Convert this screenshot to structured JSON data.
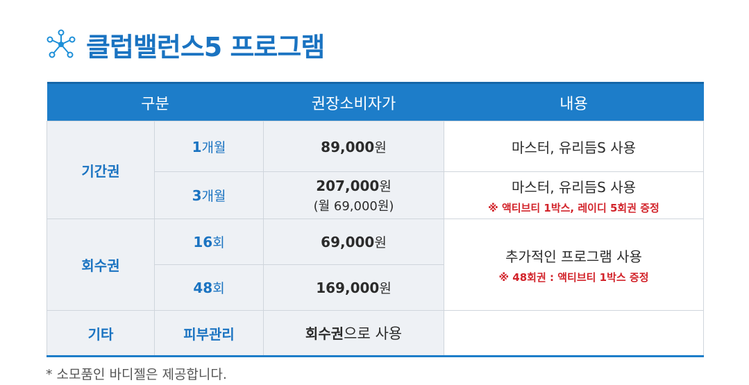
{
  "title": "클럽밸런스5 프로그램",
  "colors": {
    "accent": "#1d7dc9",
    "title": "#1a73c1",
    "note_red": "#d2232a",
    "cell_bg": "#eef1f5"
  },
  "header": {
    "col1": "구분",
    "col2": "권장소비자가",
    "col3": "내용"
  },
  "rows": {
    "period": {
      "category": "기간권",
      "r1": {
        "num": "1",
        "unit": "개월",
        "price": "89,000",
        "won": "원",
        "content": "마스터, 유리듬S 사용"
      },
      "r2": {
        "num": "3",
        "unit": "개월",
        "price": "207,000",
        "won": "원",
        "monthly": "(월 69,000원)",
        "content": "마스터, 유리듬S 사용",
        "note": "※ 액티브티 1박스, 레이디 5회권 증정"
      }
    },
    "session": {
      "category": "회수권",
      "r1": {
        "num": "16",
        "unit": "회",
        "price": "69,000",
        "won": "원"
      },
      "r2": {
        "num": "48",
        "unit": "회",
        "price": "169,000",
        "won": "원"
      },
      "content": "추가적인 프로그램 사용",
      "note": "※ 48회권 : 액티브티 1박스 증정"
    },
    "other": {
      "category": "기타",
      "sub": "피부관리",
      "price_bold": "회수권",
      "price_rest": "으로 사용",
      "content": ""
    }
  },
  "footnote": "* 소모품인 바디젤은 제공합니다."
}
